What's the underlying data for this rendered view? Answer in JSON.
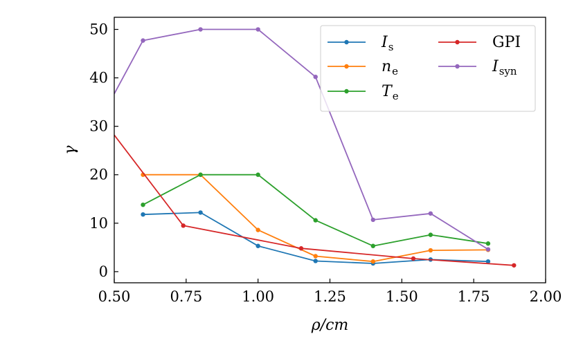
{
  "chart_data": {
    "type": "line",
    "title": "",
    "xlabel": "ρ/cm",
    "ylabel": "γ",
    "xlim": [
      0.5,
      2.0
    ],
    "ylim": [
      -2.3,
      52.5
    ],
    "xticks": [
      0.5,
      0.75,
      1.0,
      1.25,
      1.5,
      1.75,
      2.0
    ],
    "xtick_labels": [
      "0.50",
      "0.75",
      "1.00",
      "1.25",
      "1.50",
      "1.75",
      "2.00"
    ],
    "yticks": [
      0,
      10,
      20,
      30,
      40,
      50
    ],
    "ytick_labels": [
      "0",
      "10",
      "20",
      "30",
      "40",
      "50"
    ],
    "grid": false,
    "legend_position": "top-right",
    "series": [
      {
        "name": "Is",
        "label_main": "I",
        "label_sub": "s",
        "label_italic": true,
        "color": "#1f77b4",
        "x": [
          0.6,
          0.8,
          1.0,
          1.2,
          1.4,
          1.6,
          1.8
        ],
        "y": [
          11.8,
          12.2,
          5.3,
          2.2,
          1.7,
          2.5,
          2.1
        ]
      },
      {
        "name": "ne",
        "label_main": "n",
        "label_sub": "e",
        "label_italic": true,
        "color": "#ff7f0e",
        "x": [
          0.6,
          0.8,
          1.0,
          1.2,
          1.4,
          1.6,
          1.8
        ],
        "y": [
          20.0,
          20.0,
          8.6,
          3.2,
          2.1,
          4.4,
          4.5
        ]
      },
      {
        "name": "Te",
        "label_main": "T",
        "label_sub": "e",
        "label_italic": true,
        "color": "#2ca02c",
        "x": [
          0.6,
          0.8,
          1.0,
          1.2,
          1.4,
          1.6,
          1.8
        ],
        "y": [
          13.8,
          20.0,
          20.0,
          10.6,
          5.3,
          7.6,
          5.8
        ]
      },
      {
        "name": "GPI",
        "label_main": "GPI",
        "label_sub": "",
        "label_italic": false,
        "color": "#d62728",
        "x": [
          0.5,
          0.74,
          1.15,
          1.54,
          1.89
        ],
        "y": [
          28.2,
          9.5,
          4.8,
          2.7,
          1.3
        ],
        "markers_from": 1
      },
      {
        "name": "Isyn",
        "label_main": "I",
        "label_sub": "syn",
        "label_italic": true,
        "color": "#9467bd",
        "x": [
          0.5,
          0.6,
          0.8,
          1.0,
          1.2,
          1.4,
          1.6,
          1.8
        ],
        "y": [
          36.7,
          47.7,
          50.0,
          50.0,
          40.2,
          10.7,
          12.0,
          4.6
        ],
        "markers_from": 1
      }
    ]
  }
}
